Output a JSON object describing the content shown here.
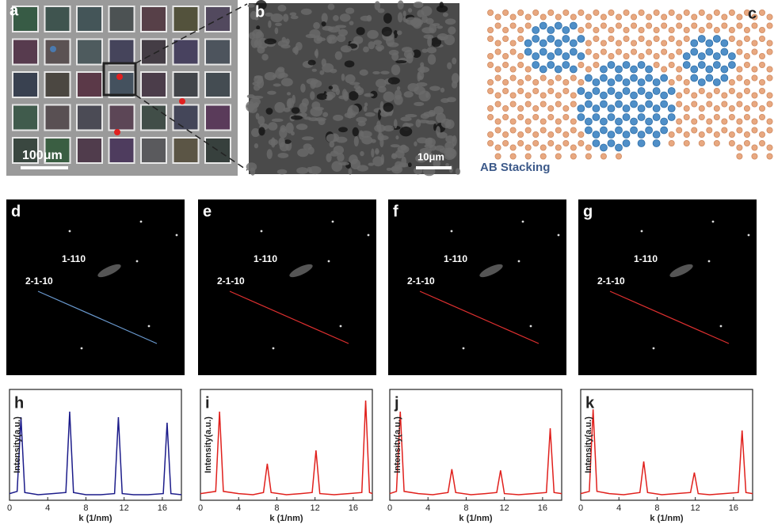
{
  "panels": {
    "a": {
      "letter": "a",
      "scale_bar": "100μm"
    },
    "b": {
      "letter": "b",
      "scale_bar": "10μm"
    },
    "c": {
      "letter": "c",
      "caption": "AB Stacking"
    },
    "diffraction": [
      {
        "letter": "d",
        "spots": [
          "1-110",
          "2-1-10"
        ]
      },
      {
        "letter": "e",
        "spots": [
          "1-110",
          "2-1-10"
        ]
      },
      {
        "letter": "f",
        "spots": [
          "1-110",
          "2-1-10"
        ]
      },
      {
        "letter": "g",
        "spots": [
          "1-110",
          "2-1-10"
        ]
      }
    ]
  },
  "chart_data": [
    {
      "type": "line",
      "letter": "h",
      "x_label": "k (1/nm)",
      "y_label": "Intensity(a.u.)",
      "xlim": [
        0,
        18
      ],
      "xticks": [
        0,
        4,
        8,
        12,
        16
      ],
      "ylim": [
        0,
        1
      ],
      "x": [
        0,
        0.8,
        1.2,
        1.6,
        3,
        4.5,
        5.9,
        6.3,
        6.7,
        8,
        9.5,
        11,
        11.4,
        11.8,
        13,
        14.5,
        16.1,
        16.5,
        16.9,
        18
      ],
      "series": [
        {
          "color": "#1c1c8a",
          "values": [
            0.06,
            0.08,
            0.75,
            0.07,
            0.05,
            0.06,
            0.07,
            0.8,
            0.07,
            0.05,
            0.05,
            0.06,
            0.75,
            0.06,
            0.05,
            0.05,
            0.06,
            0.7,
            0.06,
            0.05
          ]
        }
      ]
    },
    {
      "type": "line",
      "letter": "i",
      "x_label": "k (1/nm)",
      "y_label": "Intensity(a.u.)",
      "xlim": [
        0,
        18
      ],
      "xticks": [
        0,
        4,
        8,
        12,
        16
      ],
      "ylim": [
        0,
        1
      ],
      "x": [
        0,
        1.6,
        2.0,
        2.4,
        4,
        5.5,
        6.6,
        7.0,
        7.4,
        9,
        10.5,
        11.7,
        12.1,
        12.5,
        14,
        15.5,
        16.9,
        17.3,
        17.7,
        18
      ],
      "series": [
        {
          "color": "#e0201c",
          "values": [
            0.06,
            0.08,
            0.8,
            0.08,
            0.06,
            0.05,
            0.07,
            0.33,
            0.07,
            0.05,
            0.06,
            0.07,
            0.45,
            0.06,
            0.05,
            0.06,
            0.07,
            0.9,
            0.07,
            0.06
          ]
        }
      ]
    },
    {
      "type": "line",
      "letter": "j",
      "x_label": "k (1/nm)",
      "y_label": "Intensity(a.u.)",
      "xlim": [
        0,
        18
      ],
      "xticks": [
        0,
        4,
        8,
        12,
        16
      ],
      "ylim": [
        0,
        1
      ],
      "x": [
        0,
        0.7,
        1.1,
        1.5,
        3,
        4.5,
        6.1,
        6.5,
        6.9,
        8.5,
        10,
        11.2,
        11.6,
        12.0,
        13.5,
        15,
        16.4,
        16.8,
        17.2,
        18
      ],
      "series": [
        {
          "color": "#e0201c",
          "values": [
            0.06,
            0.08,
            0.8,
            0.08,
            0.06,
            0.05,
            0.07,
            0.28,
            0.07,
            0.05,
            0.06,
            0.07,
            0.27,
            0.06,
            0.05,
            0.06,
            0.07,
            0.65,
            0.07,
            0.06
          ]
        }
      ]
    },
    {
      "type": "line",
      "letter": "k",
      "x_label": "k (1/nm)",
      "y_label": "Intensity(a.u.)",
      "xlim": [
        0,
        18
      ],
      "xticks": [
        0,
        4,
        8,
        12,
        16
      ],
      "ylim": [
        0,
        1
      ],
      "x": [
        0,
        0.9,
        1.3,
        1.7,
        3,
        4.5,
        6.2,
        6.6,
        7.0,
        8.5,
        10,
        11.5,
        11.9,
        12.3,
        13.5,
        15,
        16.5,
        16.9,
        17.3,
        18
      ],
      "series": [
        {
          "color": "#e0201c",
          "values": [
            0.06,
            0.08,
            0.82,
            0.08,
            0.06,
            0.05,
            0.07,
            0.35,
            0.07,
            0.05,
            0.06,
            0.07,
            0.25,
            0.06,
            0.05,
            0.06,
            0.07,
            0.63,
            0.07,
            0.06
          ]
        }
      ]
    }
  ]
}
